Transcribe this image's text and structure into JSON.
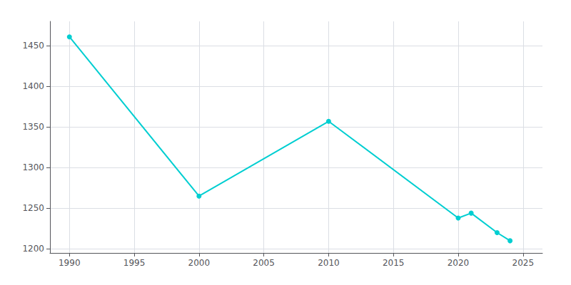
{
  "chart_data": {
    "type": "line",
    "x": [
      1990,
      2000,
      2010,
      2020,
      2021,
      2023,
      2024
    ],
    "values": [
      1461,
      1265,
      1357,
      1238,
      1244,
      1220,
      1210
    ],
    "color": "#00CED1",
    "marker": "circle",
    "xlim": [
      1988.5,
      2026.5
    ],
    "ylim": [
      1195,
      1480
    ],
    "xticks": [
      1990,
      1995,
      2000,
      2005,
      2010,
      2015,
      2020,
      2025
    ],
    "yticks": [
      1200,
      1250,
      1300,
      1350,
      1400,
      1450
    ],
    "grid": true
  }
}
